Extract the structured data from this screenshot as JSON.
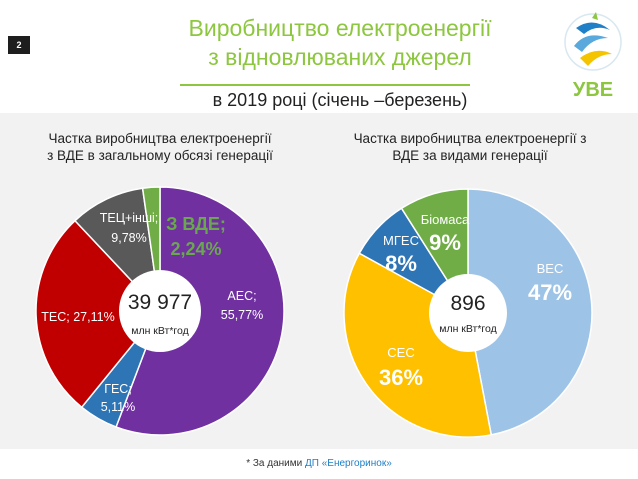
{
  "page_number": "2",
  "title_line1": "Виробництво електроенергії",
  "title_line2": "з відновлюваних джерел",
  "subtitle": "в 2019 році (січень –березень)",
  "logo_text": "УВЕ",
  "footer_prefix": "* За даними ",
  "footer_source": "ДП «Енергоринок»",
  "colors": {
    "accent": "#8dc63f",
    "purple": "#7030a0",
    "red": "#c00000",
    "gray": "#595959",
    "green": "#70ad47",
    "blue": "#2e75b6",
    "light_blue": "#9dc3e6",
    "yellow": "#ffc000"
  },
  "chart_data": [
    {
      "type": "pie",
      "title_line1": "Частка виробництва електроенергії",
      "title_line2": "з ВДЕ в загальному обсязі генерації",
      "center_value": "39 977",
      "center_unit": "млн кВт*год",
      "slices": [
        {
          "label": "АЕС;",
          "value_label": "55,77%",
          "value": 55.77,
          "color": "#7030a0"
        },
        {
          "label": "ГЕС;",
          "value_label": "5,11%",
          "value": 5.11,
          "color": "#2e75b6"
        },
        {
          "label": "ТЕС; 27,11%",
          "value_label": "",
          "value": 27.11,
          "color": "#c00000"
        },
        {
          "label": "ТЕЦ+інші;",
          "value_label": "9,78%",
          "value": 9.78,
          "color": "#595959"
        },
        {
          "label": "З ВДЕ;",
          "value_label": "2,24%",
          "value": 2.24,
          "color": "#70ad47"
        }
      ]
    },
    {
      "type": "pie",
      "title_line1": "Частка виробництва електроенергії з",
      "title_line2": "ВДЕ за видами генерації",
      "center_value": "896",
      "center_unit": "млн кВт*год",
      "slices": [
        {
          "label": "ВЕС",
          "value_label": "47%",
          "value": 47,
          "color": "#9dc3e6"
        },
        {
          "label": "СЕС",
          "value_label": "36%",
          "value": 36,
          "color": "#ffc000"
        },
        {
          "label": "МГЕС",
          "value_label": "8%",
          "value": 8,
          "color": "#2e75b6"
        },
        {
          "label": "Біомаса",
          "value_label": "9%",
          "value": 9,
          "color": "#70ad47"
        }
      ]
    }
  ]
}
